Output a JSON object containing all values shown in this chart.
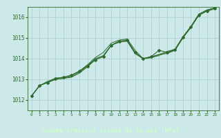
{
  "title": "Graphe pression niveau de la mer (hPa)",
  "bg_plot": "#cce8e8",
  "bg_label": "#2d6a2d",
  "line_color": "#2d6a2d",
  "grid_color": "#aacccc",
  "text_color": "#2d6a2d",
  "label_text_color": "#ccffcc",
  "xlim": [
    -0.5,
    23.5
  ],
  "ylim": [
    1011.5,
    1016.5
  ],
  "yticks": [
    1012,
    1013,
    1014,
    1015,
    1016
  ],
  "xticks": [
    0,
    1,
    2,
    3,
    4,
    5,
    6,
    7,
    8,
    9,
    10,
    11,
    12,
    13,
    14,
    15,
    16,
    17,
    18,
    19,
    20,
    21,
    22,
    23
  ],
  "series1": [
    1012.2,
    1012.7,
    1012.85,
    1013.0,
    1013.05,
    1013.1,
    1013.3,
    1013.6,
    1013.95,
    1014.1,
    1014.65,
    1014.8,
    1014.85,
    1014.25,
    1014.0,
    1014.05,
    1014.15,
    1014.3,
    1014.4,
    1015.0,
    1015.5,
    1016.1,
    1016.3,
    1016.4
  ],
  "series2": [
    1012.2,
    1012.7,
    1012.85,
    1013.0,
    1013.05,
    1013.15,
    1013.35,
    1013.65,
    1014.0,
    1014.15,
    1014.65,
    1014.8,
    1014.85,
    1014.25,
    1014.0,
    1014.1,
    1014.2,
    1014.35,
    1014.45,
    1015.05,
    1015.55,
    1016.15,
    1016.35,
    1016.45
  ],
  "series3": [
    1012.2,
    1012.7,
    1012.9,
    1013.05,
    1013.1,
    1013.2,
    1013.4,
    1013.7,
    1014.05,
    1014.3,
    1014.75,
    1014.9,
    1014.95,
    1014.4,
    1014.0,
    1014.05,
    1014.2,
    1014.25,
    1014.4,
    1015.05,
    1015.55,
    1016.15,
    1016.35,
    1016.45
  ],
  "marker_series": [
    1012.2,
    1012.7,
    1012.85,
    1013.05,
    1013.1,
    1013.2,
    1013.4,
    1013.65,
    1013.95,
    1014.1,
    1014.65,
    1014.85,
    1014.9,
    1014.3,
    1014.0,
    1014.1,
    1014.4,
    1014.3,
    1014.45,
    1015.05,
    1015.55,
    1016.1,
    1016.3,
    1016.45
  ]
}
